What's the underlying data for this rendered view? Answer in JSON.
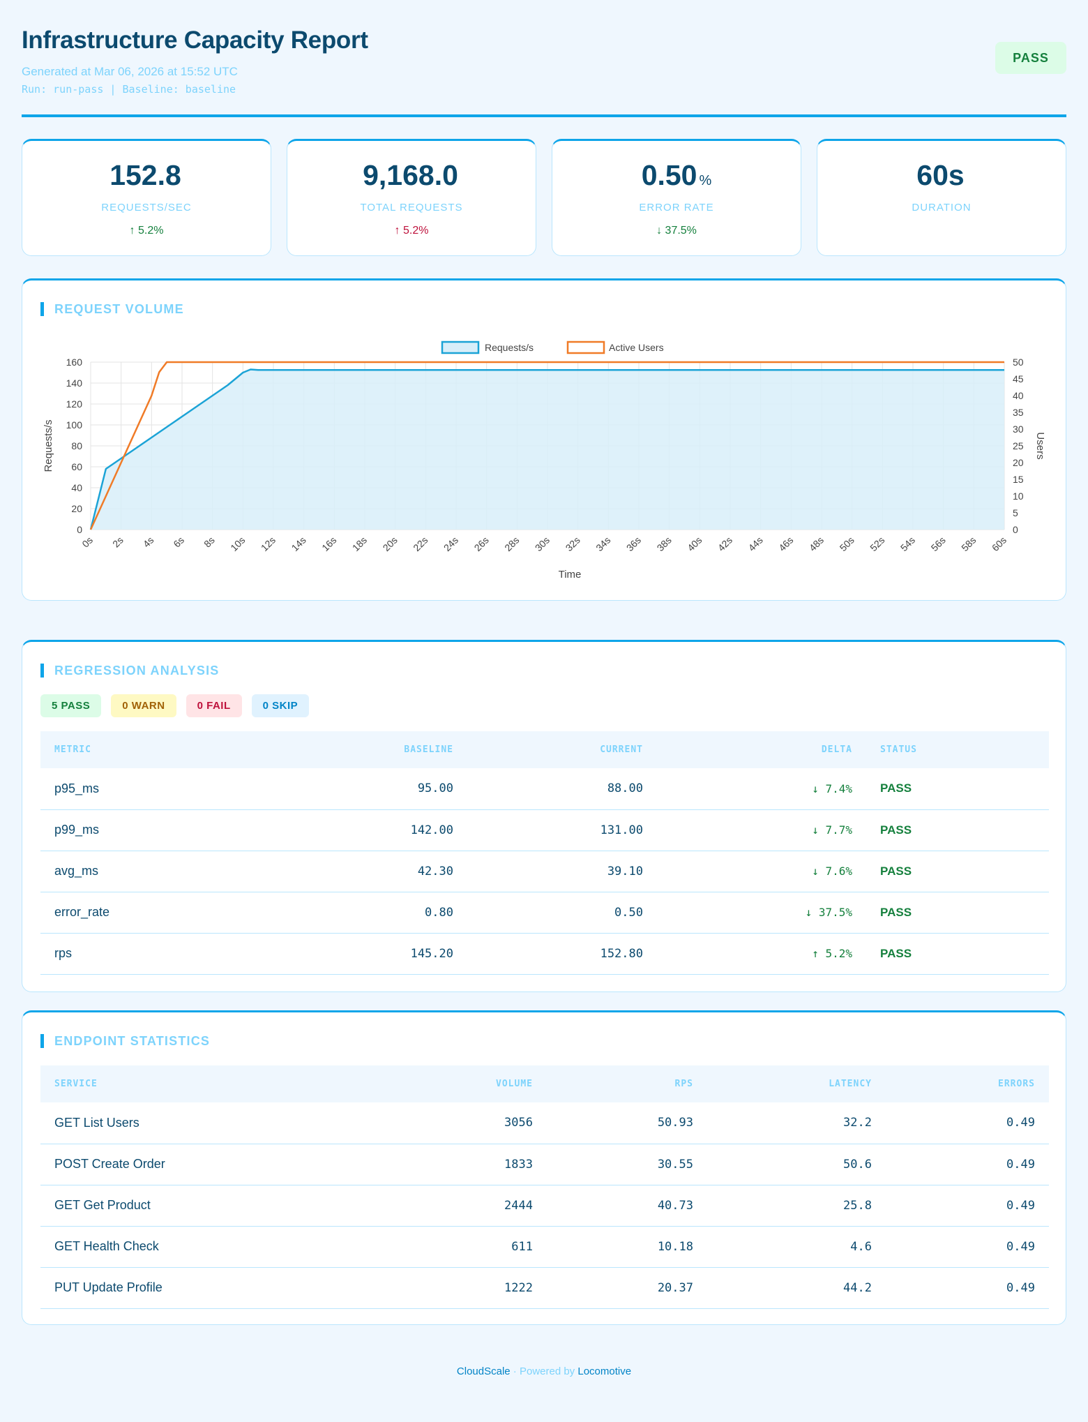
{
  "header": {
    "title": "Infrastructure Capacity Report",
    "generated": "Generated at Mar 06, 2026 at 15:52 UTC",
    "run_line": "Run: run-pass | Baseline: baseline",
    "status_badge": "PASS"
  },
  "kpis": [
    {
      "value": "152.8",
      "unit": "",
      "label": "REQUESTS/SEC",
      "delta": "↑ 5.2%",
      "delta_tone": "good"
    },
    {
      "value": "9,168.0",
      "unit": "",
      "label": "TOTAL REQUESTS",
      "delta": "↑ 5.2%",
      "delta_tone": "bad"
    },
    {
      "value": "0.50",
      "unit": "%",
      "label": "ERROR RATE",
      "delta": "↓ 37.5%",
      "delta_tone": "good"
    },
    {
      "value": "60s",
      "unit": "",
      "label": "DURATION",
      "delta": "",
      "delta_tone": "good"
    }
  ],
  "request_volume": {
    "title": "REQUEST VOLUME"
  },
  "chart_data": {
    "type": "line",
    "x": [
      "0s",
      "2s",
      "4s",
      "6s",
      "8s",
      "10s",
      "12s",
      "14s",
      "16s",
      "18s",
      "20s",
      "22s",
      "24s",
      "26s",
      "28s",
      "30s",
      "32s",
      "34s",
      "36s",
      "38s",
      "40s",
      "42s",
      "44s",
      "46s",
      "48s",
      "50s",
      "52s",
      "54s",
      "56s",
      "58s",
      "60s"
    ],
    "xlabel": "Time",
    "ylabel": "Requests/s",
    "y2label": "Users",
    "ylim": [
      0,
      160
    ],
    "y2lim": [
      0,
      50
    ],
    "yticks": [
      0,
      20,
      40,
      60,
      80,
      100,
      120,
      140,
      160
    ],
    "y2ticks": [
      0,
      5,
      10,
      15,
      20,
      25,
      30,
      35,
      40,
      45,
      50
    ],
    "grid": true,
    "legend_position": "top-center",
    "series": [
      {
        "name": "Requests/s",
        "axis": "left",
        "color": "#1ba3d6",
        "fill": "#d8eef9",
        "points": [
          [
            0,
            0
          ],
          [
            1,
            58
          ],
          [
            2,
            68
          ],
          [
            3,
            78
          ],
          [
            4,
            88
          ],
          [
            5,
            98
          ],
          [
            6,
            108
          ],
          [
            7,
            118
          ],
          [
            8,
            128
          ],
          [
            9,
            138
          ],
          [
            10,
            150
          ],
          [
            10.5,
            153
          ],
          [
            11,
            152.5
          ],
          [
            12,
            152.5
          ],
          [
            60,
            152.5
          ]
        ]
      },
      {
        "name": "Active Users",
        "axis": "right",
        "color": "#f07b27",
        "points": [
          [
            0,
            0
          ],
          [
            1,
            10
          ],
          [
            2,
            20
          ],
          [
            3,
            30
          ],
          [
            4,
            40
          ],
          [
            4.5,
            47
          ],
          [
            5,
            50
          ],
          [
            60,
            50
          ]
        ]
      }
    ]
  },
  "regression": {
    "title": "REGRESSION ANALYSIS",
    "pills": {
      "pass": "5 PASS",
      "warn": "0 WARN",
      "fail": "0 FAIL",
      "skip": "0 SKIP"
    },
    "columns": {
      "metric": "METRIC",
      "baseline": "BASELINE",
      "current": "CURRENT",
      "delta": "DELTA",
      "status": "STATUS"
    },
    "rows": [
      {
        "metric": "p95_ms",
        "baseline": "95.00",
        "current": "88.00",
        "delta": "↓ 7.4%",
        "status": "PASS"
      },
      {
        "metric": "p99_ms",
        "baseline": "142.00",
        "current": "131.00",
        "delta": "↓ 7.7%",
        "status": "PASS"
      },
      {
        "metric": "avg_ms",
        "baseline": "42.30",
        "current": "39.10",
        "delta": "↓ 7.6%",
        "status": "PASS"
      },
      {
        "metric": "error_rate",
        "baseline": "0.80",
        "current": "0.50",
        "delta": "↓ 37.5%",
        "status": "PASS"
      },
      {
        "metric": "rps",
        "baseline": "145.20",
        "current": "152.80",
        "delta": "↑ 5.2%",
        "status": "PASS"
      }
    ]
  },
  "endpoints": {
    "title": "ENDPOINT STATISTICS",
    "columns": {
      "service": "SERVICE",
      "volume": "VOLUME",
      "rps": "RPS",
      "latency": "LATENCY",
      "errors": "ERRORS"
    },
    "rows": [
      {
        "service": "GET List Users",
        "volume": "3056",
        "rps": "50.93",
        "latency": "32.2",
        "errors": "0.49"
      },
      {
        "service": "POST Create Order",
        "volume": "1833",
        "rps": "30.55",
        "latency": "50.6",
        "errors": "0.49"
      },
      {
        "service": "GET Get Product",
        "volume": "2444",
        "rps": "40.73",
        "latency": "25.8",
        "errors": "0.49"
      },
      {
        "service": "GET Health Check",
        "volume": "611",
        "rps": "10.18",
        "latency": "4.6",
        "errors": "0.49"
      },
      {
        "service": "PUT Update Profile",
        "volume": "1222",
        "rps": "20.37",
        "latency": "44.2",
        "errors": "0.49"
      }
    ]
  },
  "footer": {
    "brand": "CloudScale",
    "separator": " · Powered by ",
    "engine": "Locomotive"
  }
}
